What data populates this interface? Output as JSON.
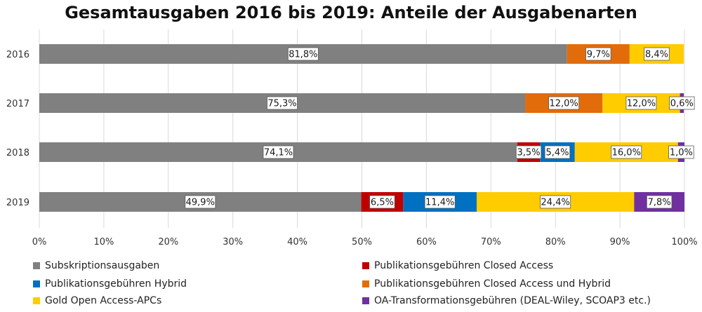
{
  "chart_data": {
    "type": "bar",
    "orientation": "horizontal",
    "stacked": true,
    "title": "Gesamtausgaben 2016 bis 2019: Anteile der Ausgabenarten",
    "categories": [
      "2016",
      "2017",
      "2018",
      "2019"
    ],
    "series": [
      {
        "name": "Subskriptionsausgaben",
        "color": "#808080",
        "values": [
          81.8,
          75.3,
          74.1,
          49.9
        ],
        "labels": [
          "81,8%",
          "75,3%",
          "74,1%",
          "49,9%"
        ]
      },
      {
        "name": "Publikationsgebühren Closed Access",
        "color": "#c00000",
        "values": [
          0,
          0,
          3.5,
          6.5
        ],
        "labels": [
          "",
          "",
          "3,5%",
          "6,5%"
        ]
      },
      {
        "name": "Publikationsgebühren Hybrid",
        "color": "#0070c0",
        "values": [
          0,
          0,
          5.4,
          11.4
        ],
        "labels": [
          "",
          "",
          "5,4%",
          "11,4%"
        ]
      },
      {
        "name": "Publikationsgebühren Closed Access und Hybrid",
        "color": "#e36c0a",
        "values": [
          9.7,
          12.0,
          0,
          0
        ],
        "labels": [
          "9,7%",
          "12,0%",
          "",
          ""
        ]
      },
      {
        "name": "Gold Open Access-APCs",
        "color": "#ffcc00",
        "values": [
          8.4,
          12.0,
          16.0,
          24.4
        ],
        "labels": [
          "8,4%",
          "12,0%",
          "16,0%",
          "24,4%"
        ]
      },
      {
        "name": "OA-Transformationsgebühren (DEAL-Wiley, SCOAP3 etc.)",
        "color": "#7030a0",
        "values": [
          0,
          0.6,
          1.0,
          7.8
        ],
        "labels": [
          "",
          "0,6%",
          "1,0%",
          "7,8%"
        ]
      }
    ],
    "xlim": [
      0,
      100
    ],
    "xticks": [
      "0%",
      "10%",
      "20%",
      "30%",
      "40%",
      "50%",
      "60%",
      "70%",
      "80%",
      "90%",
      "100%"
    ],
    "grid": true,
    "legend_position": "bottom"
  },
  "legend": [
    {
      "label": "Subskriptionsausgaben",
      "color": "#808080"
    },
    {
      "label": "Publikationsgebühren Closed Access",
      "color": "#c00000"
    },
    {
      "label": "Publikationsgebühren Hybrid",
      "color": "#0070c0"
    },
    {
      "label": "Publikationsgebühren Closed Access und Hybrid",
      "color": "#e36c0a"
    },
    {
      "label": "Gold Open Access-APCs",
      "color": "#ffcc00"
    },
    {
      "label": "OA-Transformationsgebühren (DEAL-Wiley, SCOAP3 etc.)",
      "color": "#7030a0"
    }
  ]
}
